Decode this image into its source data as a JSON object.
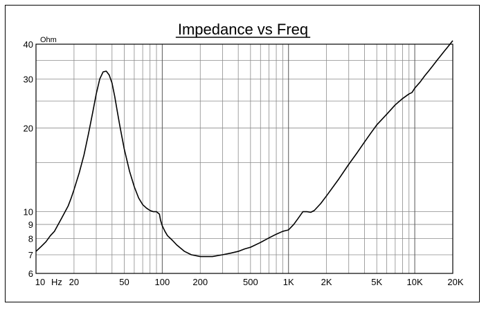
{
  "chart_data": {
    "type": "line",
    "title": "Impedance vs Freq",
    "xlabel": "Hz",
    "ylabel": "Ohm",
    "x_scale": "log",
    "y_scale": "log",
    "xlim": [
      10,
      20000
    ],
    "ylim": [
      6,
      40
    ],
    "grid": true,
    "x_ticks": [
      {
        "value": 10,
        "label": "10"
      },
      {
        "value": 20,
        "label": "20"
      },
      {
        "value": 50,
        "label": "50"
      },
      {
        "value": 100,
        "label": "100"
      },
      {
        "value": 200,
        "label": "200"
      },
      {
        "value": 500,
        "label": "500"
      },
      {
        "value": 1000,
        "label": "1K"
      },
      {
        "value": 2000,
        "label": "2K"
      },
      {
        "value": 5000,
        "label": "5K"
      },
      {
        "value": 10000,
        "label": "10K"
      },
      {
        "value": 20000,
        "label": "20K"
      }
    ],
    "y_ticks": [
      {
        "value": 6,
        "label": "6"
      },
      {
        "value": 7,
        "label": "7"
      },
      {
        "value": 8,
        "label": "8"
      },
      {
        "value": 9,
        "label": "9"
      },
      {
        "value": 10,
        "label": "10"
      },
      {
        "value": 20,
        "label": "20"
      },
      {
        "value": 30,
        "label": "30"
      },
      {
        "value": 40,
        "label": "40"
      }
    ],
    "series": [
      {
        "color": "#000000",
        "x": [
          10,
          11,
          12,
          13,
          14,
          15,
          16,
          17,
          18,
          19,
          20,
          22,
          24,
          26,
          28,
          30,
          32,
          34,
          36,
          38,
          40,
          42,
          44,
          46,
          48,
          50,
          55,
          60,
          65,
          70,
          75,
          80,
          85,
          90,
          95,
          97,
          100,
          105,
          110,
          120,
          130,
          150,
          170,
          200,
          250,
          300,
          350,
          400,
          450,
          500,
          600,
          700,
          800,
          900,
          950,
          1000,
          1050,
          1100,
          1200,
          1300,
          1400,
          1500,
          1600,
          1800,
          2000,
          2500,
          3000,
          3500,
          4000,
          4500,
          5000,
          6000,
          7000,
          8000,
          9000,
          9500,
          10000,
          11000,
          12000,
          13000,
          14000,
          15000,
          16000,
          17000,
          18000,
          19000,
          20000
        ],
        "values": [
          7.2,
          7.5,
          7.8,
          8.2,
          8.5,
          9.0,
          9.5,
          10.0,
          10.5,
          11.2,
          12.0,
          13.8,
          16.0,
          19.0,
          22.5,
          26.5,
          30.0,
          31.8,
          32.0,
          31.0,
          29.0,
          26.0,
          23.0,
          20.5,
          18.5,
          16.8,
          14.0,
          12.3,
          11.2,
          10.6,
          10.3,
          10.1,
          10.0,
          10.0,
          9.8,
          9.3,
          8.9,
          8.5,
          8.2,
          7.9,
          7.6,
          7.2,
          7.0,
          6.9,
          6.9,
          7.0,
          7.1,
          7.2,
          7.35,
          7.45,
          7.75,
          8.05,
          8.3,
          8.5,
          8.55,
          8.6,
          8.8,
          9.0,
          9.5,
          10.0,
          10.0,
          9.95,
          10.1,
          10.7,
          11.4,
          13.1,
          14.8,
          16.3,
          17.8,
          19.2,
          20.5,
          22.4,
          24.2,
          25.5,
          26.5,
          26.8,
          27.8,
          29.2,
          30.8,
          32.2,
          33.6,
          35.0,
          36.3,
          37.6,
          38.8,
          40.0,
          41.2
        ]
      }
    ]
  }
}
